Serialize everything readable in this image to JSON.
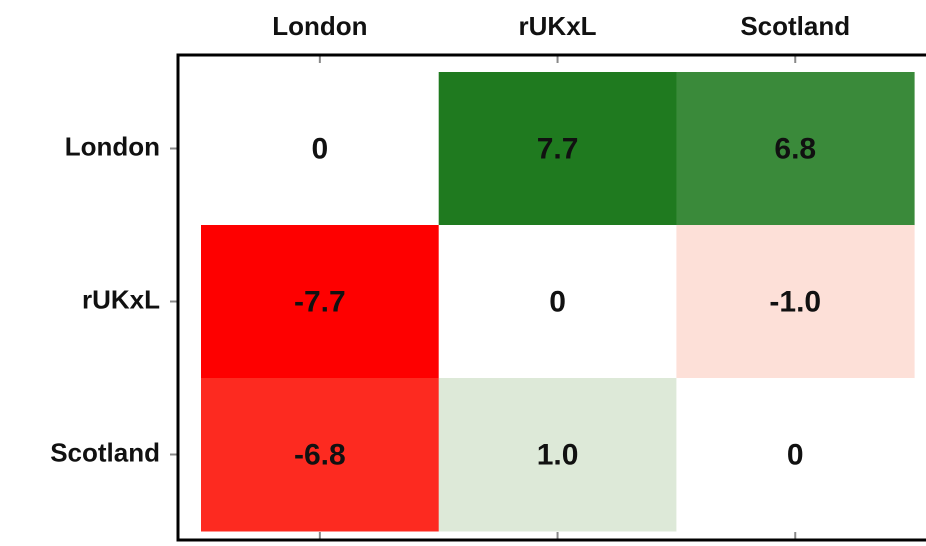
{
  "chart_data": {
    "type": "heatmap",
    "x_categories": [
      "London",
      "rUKxL",
      "Scotland"
    ],
    "y_categories": [
      "London",
      "rUKxL",
      "Scotland"
    ],
    "values": [
      [
        0,
        7.7,
        6.8
      ],
      [
        -7.7,
        0,
        -1.0
      ],
      [
        -6.8,
        1.0,
        0
      ]
    ],
    "value_labels": [
      [
        "0",
        "7.7",
        "6.8"
      ],
      [
        "-7.7",
        "0",
        "-1.0"
      ],
      [
        "-6.8",
        "1.0",
        "0"
      ]
    ],
    "colors": [
      [
        "#ffffff",
        "#1f7a1f",
        "#3a8a3a"
      ],
      [
        "#fe0000",
        "#ffffff",
        "#fde0d8"
      ],
      [
        "#fd2a20",
        "#dde9d8",
        "#ffffff"
      ]
    ]
  }
}
